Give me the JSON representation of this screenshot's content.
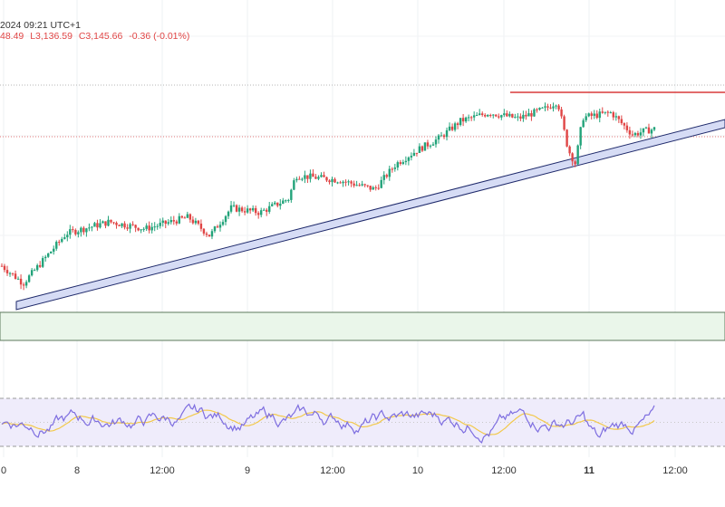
{
  "header": {
    "timestamp": "2024 09:21 UTC+1",
    "high": "48.49",
    "low": "L3,136.59",
    "close": "C3,145.66",
    "change": "-0.36 (-0.01%)"
  },
  "x_axis": {
    "labels": [
      "0",
      "8",
      "12:00",
      "9",
      "12:00",
      "10",
      "12:00",
      "11",
      "12:00"
    ],
    "bold": [
      false,
      false,
      false,
      false,
      false,
      false,
      false,
      true,
      false
    ]
  },
  "colors": {
    "up": "#22a37a",
    "down": "#e04545",
    "trend_fill": "#d6dcf5",
    "trend_stroke": "#1f2a6b",
    "resistance": "#d83a3a",
    "support_zone": "#eaf6ea",
    "rsi_line": "#7e6ee0",
    "rsi_ma": "#f2c94c",
    "rsi_band": "#efecfb"
  },
  "chart_data": {
    "type": "candlestick",
    "timeframe": "15m",
    "session_labels": [
      "8",
      "9",
      "10",
      "11"
    ],
    "price_path": [
      {
        "x": 0.0,
        "y": 3020
      },
      {
        "x": 0.03,
        "y": 3005
      },
      {
        "x": 0.09,
        "y": 3048
      },
      {
        "x": 0.15,
        "y": 3058
      },
      {
        "x": 0.2,
        "y": 3052
      },
      {
        "x": 0.26,
        "y": 3062
      },
      {
        "x": 0.29,
        "y": 3046
      },
      {
        "x": 0.32,
        "y": 3070
      },
      {
        "x": 0.36,
        "y": 3066
      },
      {
        "x": 0.4,
        "y": 3078
      },
      {
        "x": 0.41,
        "y": 3098
      },
      {
        "x": 0.47,
        "y": 3094
      },
      {
        "x": 0.52,
        "y": 3086
      },
      {
        "x": 0.55,
        "y": 3108
      },
      {
        "x": 0.58,
        "y": 3120
      },
      {
        "x": 0.61,
        "y": 3130
      },
      {
        "x": 0.64,
        "y": 3145
      },
      {
        "x": 0.68,
        "y": 3152
      },
      {
        "x": 0.72,
        "y": 3147
      },
      {
        "x": 0.76,
        "y": 3156
      },
      {
        "x": 0.775,
        "y": 3162
      },
      {
        "x": 0.79,
        "y": 3120
      },
      {
        "x": 0.8,
        "y": 3108
      },
      {
        "x": 0.81,
        "y": 3148
      },
      {
        "x": 0.85,
        "y": 3152
      },
      {
        "x": 0.88,
        "y": 3133
      },
      {
        "x": 0.895,
        "y": 3136
      },
      {
        "x": 0.91,
        "y": 3138
      }
    ],
    "last_close": 3145.66,
    "change": -0.36,
    "change_percent": -0.01,
    "rsi": {
      "upper": 70,
      "lower": 30,
      "mid": 50,
      "values_note": "RSI oscillating between roughly 30 and 75"
    }
  }
}
